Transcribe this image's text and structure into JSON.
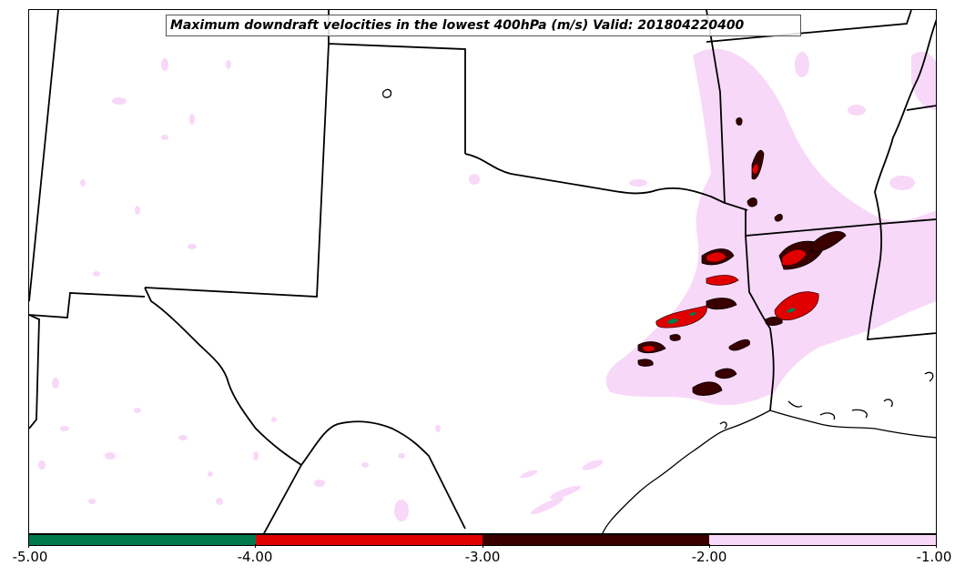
{
  "title": "Maximum downdraft velocities in the lowest 400hPa (m/s) Valid: 201804220400",
  "colorbar": {
    "ticks": [
      "-5.00",
      "-4.00",
      "-3.00",
      "-2.00",
      "-1.00"
    ],
    "segments": [
      {
        "range": "-5.00 to -4.00",
        "color": "#007a4d"
      },
      {
        "range": "-4.00 to -3.00",
        "color": "#e00000"
      },
      {
        "range": "-3.00 to -2.00",
        "color": "#3a0000"
      },
      {
        "range": "-2.00 to -1.00",
        "color": "#f8d8f8"
      }
    ]
  },
  "colors": {
    "weak": "#f8d8f8",
    "moderate": "#3a0000",
    "strong": "#e00000",
    "extreme": "#007a4d",
    "borders": "#000000"
  }
}
